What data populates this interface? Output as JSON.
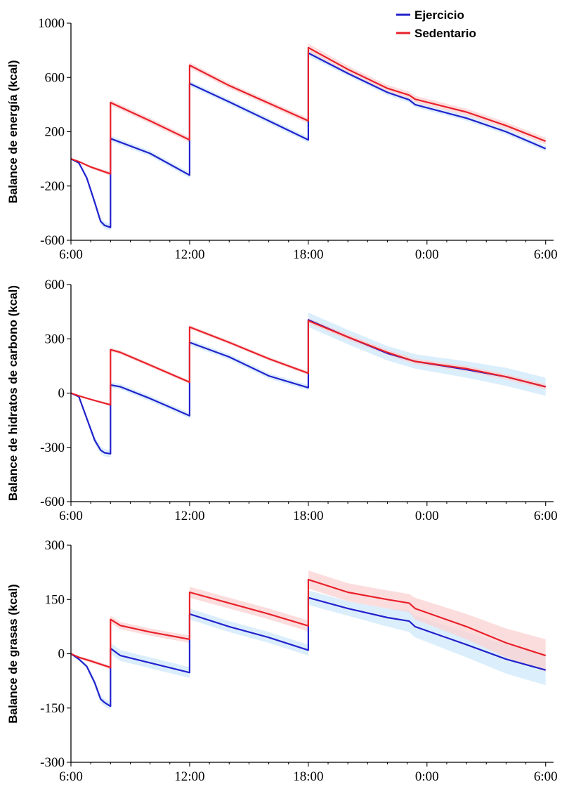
{
  "legend": {
    "position": "top-right",
    "items": [
      {
        "label": "Ejercicio",
        "color": "#2222cc"
      },
      {
        "label": "Sedentario",
        "color": "#e8202a"
      }
    ]
  },
  "colors": {
    "Ejercicio": "#2222cc",
    "Sedentario": "#e8202a",
    "Ejercicio_band": "#cfe8fb",
    "Sedentario_band": "#fbd2d2"
  },
  "x_ticks": [
    {
      "value": 6,
      "label": "6:00"
    },
    {
      "value": 12,
      "label": "12:00"
    },
    {
      "value": 18,
      "label": "18:00"
    },
    {
      "value": 24,
      "label": "0:00"
    },
    {
      "value": 30,
      "label": "6:00"
    }
  ],
  "chart_data": [
    {
      "type": "line",
      "ylabel": "Balance de energía (kcal)",
      "xlim": [
        6,
        30.4
      ],
      "ylim": [
        -600,
        1000
      ],
      "yticks": [
        -600,
        -200,
        200,
        600,
        1000
      ],
      "series": [
        {
          "name": "Ejercicio",
          "x": [
            6,
            6.4,
            6.8,
            7.2,
            7.5,
            7.7,
            8.0,
            8.0001,
            10,
            12.0,
            12.0001,
            14,
            16,
            18.0,
            18.0001,
            20,
            22,
            23.1,
            23.4,
            26,
            28,
            30
          ],
          "y": [
            0,
            -30,
            -140,
            -320,
            -460,
            -490,
            -505,
            150,
            40,
            -120,
            555,
            420,
            280,
            140,
            780,
            630,
            490,
            435,
            400,
            300,
            200,
            75
          ],
          "band": [
            0,
            10,
            20,
            25,
            25,
            25,
            25,
            20,
            20,
            20,
            20,
            20,
            20,
            20,
            25,
            20,
            20,
            20,
            20,
            20,
            20,
            20
          ]
        },
        {
          "name": "Sedentario",
          "x": [
            6,
            6.4,
            7,
            8.0,
            8.0001,
            10,
            12.0,
            12.0001,
            14,
            16,
            18.0,
            18.0001,
            20,
            22,
            23.1,
            23.4,
            26,
            28,
            30
          ],
          "y": [
            0,
            -20,
            -60,
            -110,
            415,
            280,
            140,
            690,
            540,
            410,
            280,
            820,
            660,
            520,
            470,
            440,
            345,
            245,
            130
          ],
          "band": [
            0,
            5,
            10,
            15,
            20,
            20,
            20,
            20,
            20,
            20,
            20,
            30,
            25,
            25,
            25,
            25,
            25,
            25,
            25
          ]
        }
      ]
    },
    {
      "type": "line",
      "ylabel": "Balance de hidratos de carbono (kcal)",
      "xlim": [
        6,
        30.4
      ],
      "ylim": [
        -600,
        600
      ],
      "yticks": [
        -600,
        -300,
        0,
        300,
        600
      ],
      "series": [
        {
          "name": "Ejercicio",
          "x": [
            6,
            6.4,
            6.8,
            7.2,
            7.5,
            7.7,
            8.0,
            8.0001,
            8.5,
            10,
            12.0,
            12.0001,
            14,
            16,
            18.0,
            18.0001,
            20,
            22,
            23.1,
            23.4,
            26,
            28,
            30
          ],
          "y": [
            0,
            -20,
            -140,
            -260,
            -315,
            -330,
            -335,
            45,
            35,
            -30,
            -125,
            280,
            200,
            95,
            30,
            405,
            310,
            220,
            185,
            175,
            130,
            90,
            35
          ],
          "band": [
            0,
            10,
            15,
            20,
            20,
            20,
            20,
            15,
            15,
            15,
            15,
            15,
            15,
            15,
            15,
            40,
            40,
            40,
            40,
            40,
            45,
            50,
            50
          ]
        },
        {
          "name": "Sedentario",
          "x": [
            6,
            6.4,
            7,
            8.0,
            8.0001,
            8.5,
            10,
            12.0,
            12.0001,
            14,
            16,
            18.0,
            18.0001,
            20,
            22,
            23.1,
            23.4,
            26,
            28,
            30
          ],
          "y": [
            0,
            -15,
            -35,
            -65,
            240,
            225,
            155,
            60,
            365,
            280,
            190,
            110,
            400,
            310,
            225,
            185,
            175,
            135,
            90,
            35
          ],
          "band": [
            0,
            3,
            5,
            8,
            10,
            10,
            10,
            10,
            10,
            10,
            10,
            10,
            15,
            15,
            15,
            15,
            15,
            15,
            15,
            15
          ]
        }
      ]
    },
    {
      "type": "line",
      "ylabel": "Balance de grasas (kcal)",
      "xlim": [
        6,
        30.4
      ],
      "ylim": [
        -300,
        300
      ],
      "yticks": [
        -300,
        -150,
        0,
        150,
        300
      ],
      "series": [
        {
          "name": "Ejercicio",
          "x": [
            6,
            6.4,
            6.8,
            7.2,
            7.5,
            7.7,
            8.0,
            8.0001,
            8.5,
            10,
            12.0,
            12.0001,
            14,
            16,
            18.0,
            18.0001,
            20,
            22,
            23.1,
            23.4,
            26,
            28,
            30
          ],
          "y": [
            0,
            -15,
            -35,
            -80,
            -125,
            -135,
            -145,
            15,
            -5,
            -25,
            -52,
            110,
            75,
            45,
            10,
            155,
            125,
            100,
            90,
            75,
            25,
            -15,
            -45
          ],
          "band": [
            0,
            5,
            5,
            10,
            10,
            10,
            10,
            15,
            15,
            15,
            15,
            15,
            15,
            15,
            15,
            20,
            20,
            25,
            30,
            30,
            35,
            40,
            42
          ]
        },
        {
          "name": "Sedentario",
          "x": [
            6,
            6.4,
            7,
            8.0,
            8.0001,
            8.5,
            10,
            12.0,
            12.0001,
            14,
            16,
            18.0,
            18.0001,
            20,
            22,
            23.1,
            23.4,
            26,
            28,
            30
          ],
          "y": [
            0,
            -10,
            -20,
            -38,
            95,
            78,
            60,
            40,
            170,
            140,
            110,
            77,
            205,
            170,
            150,
            140,
            125,
            75,
            30,
            -5
          ],
          "band": [
            0,
            3,
            5,
            5,
            10,
            10,
            10,
            10,
            15,
            15,
            15,
            15,
            25,
            25,
            25,
            25,
            30,
            35,
            40,
            45
          ]
        }
      ]
    }
  ]
}
